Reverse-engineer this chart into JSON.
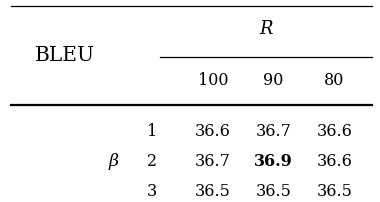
{
  "bleu_label": "BLEU",
  "R_label": "R",
  "col_headers": [
    "100",
    "90",
    "80"
  ],
  "row_label": "β",
  "row_sub_labels": [
    "1",
    "2",
    "3"
  ],
  "data": [
    [
      "36.6",
      "36.7",
      "36.6"
    ],
    [
      "36.7",
      "36.9",
      "36.6"
    ],
    [
      "36.5",
      "36.5",
      "36.5"
    ]
  ],
  "bold_cell": [
    1,
    1
  ],
  "bg_color": "#ffffff",
  "text_color": "#000000",
  "font_size": 11.5,
  "bleu_fontsize": 14.5
}
